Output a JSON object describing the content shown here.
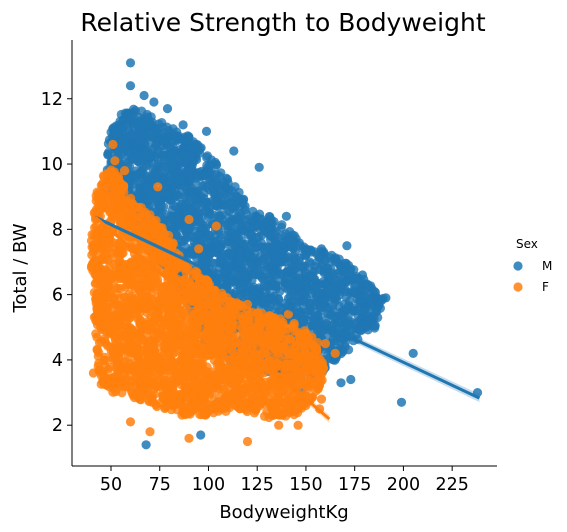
{
  "chart_data": {
    "type": "scatter",
    "title": "Relative Strength to Bodyweight",
    "xlabel": "BodyweightKg",
    "ylabel": "Total / BW",
    "xlim": [
      30,
      248
    ],
    "ylim": [
      0.75,
      13.8
    ],
    "x_ticks": [
      50,
      75,
      100,
      125,
      150,
      175,
      200,
      225
    ],
    "y_ticks": [
      2,
      4,
      6,
      8,
      10,
      12
    ],
    "grid": false,
    "legend": {
      "title": "Sex",
      "placement": "right",
      "entries": [
        "M",
        "F"
      ]
    },
    "series": [
      {
        "name": "M",
        "color": "#1f77b4",
        "cloud": [
          [
            48,
            9.2
          ],
          [
            48,
            10.9
          ],
          [
            55,
            11.6
          ],
          [
            62,
            11.8
          ],
          [
            75,
            11.3
          ],
          [
            90,
            10.9
          ],
          [
            105,
            10.0
          ],
          [
            120,
            8.8
          ],
          [
            135,
            8.3
          ],
          [
            150,
            7.5
          ],
          [
            160,
            7.3
          ],
          [
            170,
            7.0
          ],
          [
            182,
            6.4
          ],
          [
            190,
            5.9
          ],
          [
            186,
            5.0
          ],
          [
            170,
            4.2
          ],
          [
            158,
            3.6
          ],
          [
            145,
            3.3
          ],
          [
            130,
            3.6
          ],
          [
            115,
            3.8
          ],
          [
            100,
            4.3
          ],
          [
            90,
            5.6
          ],
          [
            78,
            6.8
          ],
          [
            65,
            7.7
          ],
          [
            55,
            8.4
          ]
        ],
        "outliers": [
          [
            60,
            13.1
          ],
          [
            60,
            12.4
          ],
          [
            67,
            12.1
          ],
          [
            72,
            11.9
          ],
          [
            79,
            11.7
          ],
          [
            87,
            11.2
          ],
          [
            99,
            11.0
          ],
          [
            113,
            10.4
          ],
          [
            126,
            9.9
          ],
          [
            140,
            8.4
          ],
          [
            158,
            7.4
          ],
          [
            171,
            7.5
          ],
          [
            179,
            6.6
          ],
          [
            185,
            6.1
          ],
          [
            191,
            5.9
          ],
          [
            181,
            5.2
          ],
          [
            205,
            4.2
          ],
          [
            199,
            2.7
          ],
          [
            173,
            3.4
          ],
          [
            168,
            3.3
          ],
          [
            148,
            3.1
          ],
          [
            133,
            2.5
          ],
          [
            115,
            2.9
          ],
          [
            100,
            2.5
          ],
          [
            68,
            1.4
          ],
          [
            96,
            1.7
          ],
          [
            238,
            3.0
          ],
          [
            152,
            4.5
          ],
          [
            164,
            4.0
          ]
        ],
        "regression": {
          "x": [
            42,
            239
          ],
          "y": [
            8.37,
            2.83
          ]
        }
      },
      {
        "name": "F",
        "color": "#ff7f0e",
        "cloud": [
          [
            40,
            8.0
          ],
          [
            42,
            9.2
          ],
          [
            47,
            9.9
          ],
          [
            52,
            9.8
          ],
          [
            60,
            9.0
          ],
          [
            68,
            8.6
          ],
          [
            78,
            8.0
          ],
          [
            86,
            7.1
          ],
          [
            92,
            6.8
          ],
          [
            100,
            6.4
          ],
          [
            110,
            5.9
          ],
          [
            120,
            5.6
          ],
          [
            135,
            5.3
          ],
          [
            150,
            5.0
          ],
          [
            157,
            4.5
          ],
          [
            160,
            3.6
          ],
          [
            155,
            2.9
          ],
          [
            145,
            2.3
          ],
          [
            132,
            2.2
          ],
          [
            115,
            2.5
          ],
          [
            100,
            2.3
          ],
          [
            85,
            2.3
          ],
          [
            70,
            2.6
          ],
          [
            58,
            2.9
          ],
          [
            50,
            3.0
          ],
          [
            44,
            3.3
          ],
          [
            42,
            4.8
          ],
          [
            40,
            6.5
          ]
        ],
        "outliers": [
          [
            51,
            10.6
          ],
          [
            52,
            10.1
          ],
          [
            57,
            9.8
          ],
          [
            74,
            9.3
          ],
          [
            90,
            8.3
          ],
          [
            104,
            8.1
          ],
          [
            95,
            7.4
          ],
          [
            103,
            6.1
          ],
          [
            120,
            5.7
          ],
          [
            141,
            5.4
          ],
          [
            153,
            4.7
          ],
          [
            160,
            4.5
          ],
          [
            165,
            4.2
          ],
          [
            158,
            2.8
          ],
          [
            157,
            2.5
          ],
          [
            136,
            2.0
          ],
          [
            120,
            1.5
          ],
          [
            90,
            1.6
          ],
          [
            70,
            1.8
          ],
          [
            41,
            3.6
          ],
          [
            60,
            2.1
          ],
          [
            146,
            2.0
          ]
        ],
        "regression": {
          "x": [
            42,
            162
          ],
          "y": [
            8.37,
            2.19
          ]
        }
      }
    ]
  }
}
